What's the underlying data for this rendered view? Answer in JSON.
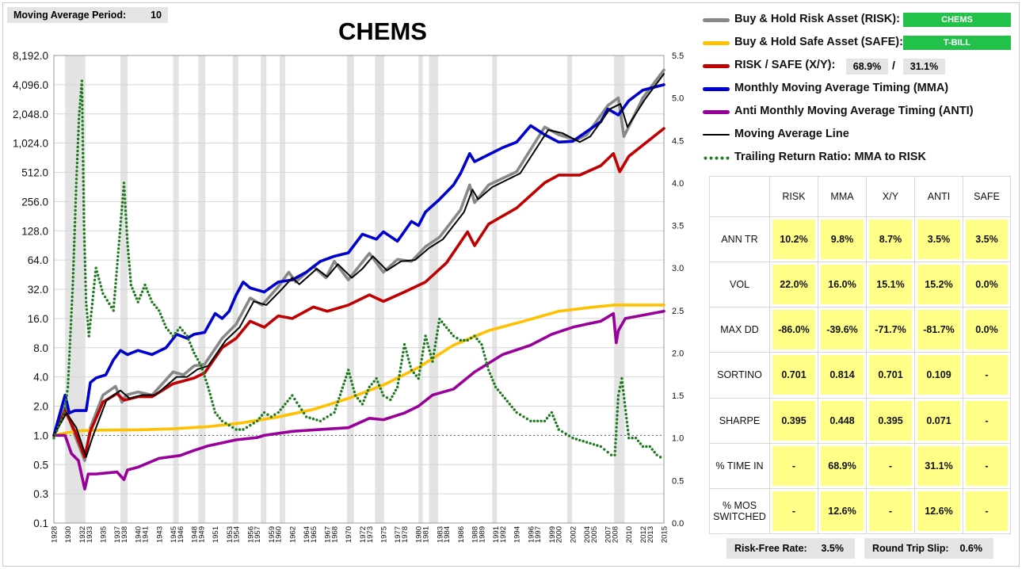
{
  "ma_period": {
    "label": "Moving Average Period:",
    "value": "10"
  },
  "legend": {
    "risk": {
      "label": "Buy & Hold Risk Asset (RISK):",
      "value": "CHEMS",
      "color": "#888888"
    },
    "safe": {
      "label": "Buy & Hold Safe Asset (SAFE):",
      "value": "T-BILL",
      "color": "#ffc000"
    },
    "xy": {
      "label": "RISK / SAFE (X/Y):",
      "x_value": "68.9%",
      "separator": "/",
      "y_value": "31.1%",
      "color": "#c00000"
    },
    "mma": {
      "label": "Monthly Moving Average Timing (MMA)",
      "color": "#0000cc"
    },
    "anti": {
      "label": "Anti Monthly Moving Average Timing (ANTI)",
      "color": "#990099"
    },
    "ma_line": {
      "label": "Moving Average Line",
      "color": "#000000"
    },
    "ratio": {
      "label": "Trailing Return Ratio: MMA to RISK",
      "color": "#1e7a1e"
    }
  },
  "stats": {
    "headers": [
      "RISK",
      "MMA",
      "X/Y",
      "ANTI",
      "SAFE"
    ],
    "rows": [
      {
        "label": "ANN TR",
        "values": [
          "10.2%",
          "9.8%",
          "8.7%",
          "3.5%",
          "3.5%"
        ]
      },
      {
        "label": "VOL",
        "values": [
          "22.0%",
          "16.0%",
          "15.1%",
          "15.2%",
          "0.0%"
        ]
      },
      {
        "label": "MAX DD",
        "values": [
          "-86.0%",
          "-39.6%",
          "-71.7%",
          "-81.7%",
          "0.0%"
        ]
      },
      {
        "label": "SORTINO",
        "values": [
          "0.701",
          "0.814",
          "0.701",
          "0.109",
          "-"
        ]
      },
      {
        "label": "SHARPE",
        "values": [
          "0.395",
          "0.448",
          "0.395",
          "0.071",
          "-"
        ]
      },
      {
        "label": "% TIME IN",
        "values": [
          "-",
          "68.9%",
          "-",
          "31.1%",
          "-"
        ]
      },
      {
        "label": "% MOS SWITCHED",
        "values": [
          "-",
          "12.6%",
          "-",
          "12.6%",
          "-"
        ]
      }
    ]
  },
  "footer": {
    "rf_label": "Risk-Free Rate:",
    "rf_value": "3.5%",
    "slip_label": "Round Trip Slip:",
    "slip_value": "0.6%"
  },
  "chart_data": {
    "type": "line",
    "title": "CHEMS",
    "xlabel": "",
    "ylabel": "",
    "y_scale": "log2",
    "y_ticks": [
      "8,192.0",
      "4,096.0",
      "2,048.0",
      "1,024.0",
      "512.0",
      "256.0",
      "128.0",
      "64.0",
      "32.0",
      "16.0",
      "8.0",
      "4.0",
      "2.0",
      "1.0",
      "0.5",
      "0.3",
      "0.1"
    ],
    "y_tick_values": [
      8192,
      4096,
      2048,
      1024,
      512,
      256,
      128,
      64,
      32,
      16,
      8,
      4,
      2,
      1,
      0.5,
      0.25,
      0.125
    ],
    "y2_ticks": [
      "5.5",
      "5.0",
      "4.5",
      "4.0",
      "3.5",
      "3.0",
      "2.5",
      "2.0",
      "1.5",
      "1.0",
      "0.5",
      "0.0"
    ],
    "y2_lim": [
      0,
      5.5
    ],
    "x_ticks": [
      "1928",
      "1930",
      "1932",
      "1933",
      "1935",
      "1937",
      "1938",
      "1940",
      "1941",
      "1943",
      "1945",
      "1946",
      "1948",
      "1949",
      "1951",
      "1953",
      "1954",
      "1956",
      "1957",
      "1959",
      "1960",
      "1962",
      "1964",
      "1965",
      "1967",
      "1968",
      "1970",
      "1972",
      "1973",
      "1975",
      "1977",
      "1978",
      "1980",
      "1981",
      "1983",
      "1984",
      "1986",
      "1988",
      "1989",
      "1991",
      "1992",
      "1994",
      "1996",
      "1997",
      "1999",
      "2000",
      "2002",
      "2004",
      "2005",
      "2007",
      "2008",
      "2010",
      "2012",
      "2013",
      "2015"
    ],
    "x_lim": [
      1928,
      2015
    ],
    "shaded_periods": [
      [
        1929.6,
        1932.5
      ],
      [
        1937.5,
        1938.5
      ],
      [
        1945.0,
        1945.8
      ],
      [
        1948.6,
        1949.6
      ],
      [
        1953.5,
        1954.3
      ],
      [
        1957.5,
        1958.3
      ],
      [
        1960.2,
        1961.0
      ],
      [
        1969.8,
        1970.8
      ],
      [
        1973.8,
        1975.1
      ],
      [
        1980.0,
        1980.6
      ],
      [
        1981.5,
        1982.8
      ],
      [
        1990.5,
        1991.2
      ],
      [
        2001.2,
        2001.9
      ],
      [
        2007.9,
        2009.4
      ]
    ],
    "series": [
      {
        "name": "Buy & Hold Risk Asset (RISK)",
        "color": "#888888",
        "x": [
          1928,
          1929.6,
          1931,
          1932.4,
          1933.2,
          1935,
          1936.8,
          1937.7,
          1938.3,
          1940,
          1942,
          1945,
          1946.5,
          1948,
          1949.5,
          1952,
          1954,
          1956,
          1957.7,
          1960,
          1961.5,
          1962.5,
          1965,
          1966.8,
          1968,
          1970,
          1971.5,
          1973,
          1975,
          1977,
          1979,
          1981,
          1983,
          1986,
          1987.3,
          1988,
          1990,
          1994,
          1998,
          2000,
          2002.5,
          2004,
          2007,
          2008.5,
          2009.3,
          2012,
          2015
        ],
        "y": [
          1,
          2,
          1,
          0.55,
          1.2,
          2.6,
          3.2,
          2.2,
          2.6,
          2.8,
          2.6,
          4.5,
          4.2,
          5.2,
          5.4,
          10,
          14,
          26,
          22,
          34,
          48,
          38,
          55,
          42,
          62,
          40,
          55,
          75,
          48,
          65,
          62,
          88,
          110,
          210,
          380,
          250,
          380,
          520,
          1500,
          1250,
          1100,
          1250,
          2500,
          3000,
          1200,
          3000,
          5800
        ]
      },
      {
        "name": "Buy & Hold Safe Asset (SAFE)",
        "color": "#ffc000",
        "x": [
          1928,
          1930,
          1932,
          1934,
          1940,
          1945,
          1950,
          1955,
          1960,
          1965,
          1970,
          1975,
          1980,
          1985,
          1990,
          1995,
          2000,
          2005,
          2008,
          2015
        ],
        "y": [
          1,
          1.07,
          1.12,
          1.13,
          1.14,
          1.17,
          1.23,
          1.35,
          1.55,
          1.85,
          2.4,
          3.3,
          5,
          8.5,
          12,
          15,
          19,
          21,
          22,
          22
        ]
      },
      {
        "name": "RISK / SAFE (X/Y)",
        "color": "#c00000",
        "x": [
          1928,
          1929.6,
          1931,
          1932.4,
          1933.2,
          1935,
          1937,
          1938,
          1940,
          1942,
          1945,
          1948,
          1949.5,
          1952,
          1954,
          1956,
          1958,
          1960,
          1962,
          1965,
          1967,
          1970,
          1973,
          1975,
          1978,
          1981,
          1984,
          1987,
          1988,
          1990,
          1994,
          1998,
          2000,
          2003,
          2006,
          2007.8,
          2008.7,
          2010,
          2015
        ],
        "y": [
          1,
          1.8,
          1.1,
          0.6,
          1.1,
          2.2,
          2.7,
          2.3,
          2.5,
          2.5,
          3.4,
          3.9,
          4.4,
          8,
          10,
          15,
          13,
          17,
          16,
          21,
          19,
          22,
          28,
          24,
          30,
          38,
          60,
          125,
          90,
          150,
          220,
          400,
          480,
          480,
          600,
          800,
          520,
          750,
          1450
        ]
      },
      {
        "name": "Monthly Moving Average Timing (MMA)",
        "color": "#0000cc",
        "x": [
          1928,
          1929.6,
          1930.2,
          1931,
          1932.6,
          1933.2,
          1934,
          1935.4,
          1936.5,
          1937.5,
          1938.5,
          1940,
          1942,
          1944,
          1945.5,
          1947,
          1948,
          1949.5,
          1951,
          1952,
          1953,
          1954,
          1955,
          1956,
          1958,
          1960,
          1962,
          1964,
          1966,
          1968,
          1970,
          1972,
          1974,
          1975,
          1977,
          1979,
          1980,
          1981,
          1983,
          1985,
          1986,
          1987.3,
          1988,
          1990,
          1992,
          1994,
          1996,
          1998,
          2000,
          2002,
          2004,
          2006,
          2007,
          2008.5,
          2010,
          2012,
          2015
        ],
        "y": [
          1,
          2.6,
          1.7,
          1.8,
          1.8,
          3.5,
          3.9,
          4.2,
          6,
          7.5,
          6.8,
          7.5,
          6.8,
          8,
          11,
          10,
          11,
          11.5,
          18,
          16,
          19,
          28,
          38,
          33,
          30,
          38,
          40,
          48,
          62,
          70,
          76,
          118,
          105,
          125,
          100,
          160,
          145,
          200,
          270,
          380,
          500,
          800,
          660,
          780,
          920,
          1050,
          1550,
          1250,
          1050,
          1070,
          1350,
          1700,
          2300,
          2000,
          2800,
          3600,
          4100
        ]
      },
      {
        "name": "Anti Monthly Moving Average Timing (ANTI)",
        "color": "#990099",
        "x": [
          1928,
          1929.6,
          1930.5,
          1931.5,
          1932.4,
          1932.9,
          1934,
          1937,
          1938,
          1938.5,
          1940,
          1943,
          1946,
          1948,
          1950,
          1954,
          1957,
          1958,
          1962,
          1966,
          1970,
          1973,
          1975,
          1978,
          1980,
          1982,
          1985,
          1988,
          1992,
          1996,
          1999,
          2002,
          2004,
          2006,
          2007.8,
          2008.2,
          2008.5,
          2009.5,
          2015
        ],
        "y": [
          1,
          1,
          0.65,
          0.55,
          0.28,
          0.4,
          0.4,
          0.42,
          0.35,
          0.44,
          0.47,
          0.58,
          0.62,
          0.7,
          0.78,
          0.9,
          0.95,
          1.0,
          1.1,
          1.15,
          1.2,
          1.5,
          1.45,
          1.7,
          2,
          2.6,
          3,
          4.5,
          6.8,
          8.5,
          11,
          13,
          14,
          15,
          18,
          9,
          12,
          16,
          19
        ]
      },
      {
        "name": "Moving Average Line",
        "color": "#000000",
        "x": [
          1928,
          1929.8,
          1931.2,
          1932.6,
          1933.6,
          1935.5,
          1937.5,
          1938.8,
          1940.5,
          1942.5,
          1945.5,
          1947,
          1948.5,
          1950,
          1952.5,
          1954.5,
          1956.5,
          1958.3,
          1960.5,
          1962,
          1963,
          1965.5,
          1967,
          1968.5,
          1970.5,
          1972,
          1973.5,
          1975.5,
          1977.5,
          1979.5,
          1981.5,
          1983.5,
          1986.5,
          1987.7,
          1988.5,
          1990.5,
          1994.5,
          1998.5,
          2000.5,
          2003,
          2004.5,
          2007.3,
          2008.8,
          2009.8,
          2012.3,
          2015
        ],
        "y": [
          1,
          1.7,
          1.2,
          0.6,
          1,
          2.3,
          2.9,
          2.4,
          2.6,
          2.6,
          4,
          4,
          4.8,
          5.2,
          9.5,
          13,
          24,
          22,
          32,
          42,
          36,
          52,
          43,
          58,
          42,
          52,
          70,
          50,
          62,
          64,
          85,
          105,
          200,
          340,
          270,
          360,
          500,
          1400,
          1300,
          1050,
          1200,
          2300,
          2600,
          1500,
          2900,
          5300
        ]
      },
      {
        "name": "Trailing Return Ratio: MMA to RISK",
        "color": "#1e7a1e",
        "axis": "right",
        "x": [
          1928,
          1929.5,
          1930,
          1930.7,
          1931.2,
          1931.6,
          1932,
          1932.3,
          1932.6,
          1933,
          1934,
          1935,
          1936.5,
          1937,
          1937.5,
          1938,
          1938.5,
          1939,
          1940,
          1941,
          1942,
          1943,
          1944,
          1945,
          1946,
          1947,
          1948,
          1949,
          1950,
          1951,
          1952,
          1953,
          1954,
          1955,
          1956,
          1957,
          1958,
          1959,
          1960,
          1962,
          1964,
          1966,
          1968,
          1969,
          1970,
          1971,
          1972,
          1973,
          1974,
          1975,
          1976,
          1977,
          1978,
          1979,
          1980,
          1981,
          1982,
          1983,
          1984,
          1985,
          1986,
          1987,
          1988,
          1989,
          1990,
          1991,
          1992,
          1994,
          1996,
          1998,
          1999,
          2000,
          2002,
          2004,
          2006,
          2007.5,
          2008,
          2008.5,
          2009,
          2010,
          2011,
          2012,
          2013,
          2014,
          2015
        ],
        "y": [
          1.0,
          1.3,
          1.6,
          2.8,
          4.0,
          4.8,
          5.2,
          3.5,
          2.6,
          2.2,
          3.0,
          2.7,
          2.5,
          3.0,
          3.5,
          4.0,
          3.3,
          2.8,
          2.6,
          2.8,
          2.6,
          2.5,
          2.3,
          2.2,
          2.3,
          2.2,
          2.0,
          1.85,
          1.6,
          1.3,
          1.2,
          1.15,
          1.1,
          1.1,
          1.15,
          1.2,
          1.3,
          1.25,
          1.3,
          1.5,
          1.25,
          1.2,
          1.3,
          1.55,
          1.8,
          1.5,
          1.4,
          1.6,
          1.7,
          1.5,
          1.45,
          1.6,
          2.1,
          1.8,
          1.7,
          2.2,
          1.9,
          2.4,
          2.3,
          2.2,
          2.15,
          2.15,
          2.2,
          2.1,
          1.8,
          1.6,
          1.5,
          1.3,
          1.2,
          1.2,
          1.3,
          1.1,
          1.0,
          0.95,
          0.9,
          0.8,
          0.8,
          1.5,
          1.7,
          1.0,
          1.0,
          0.9,
          0.9,
          0.8,
          0.75
        ]
      }
    ]
  }
}
